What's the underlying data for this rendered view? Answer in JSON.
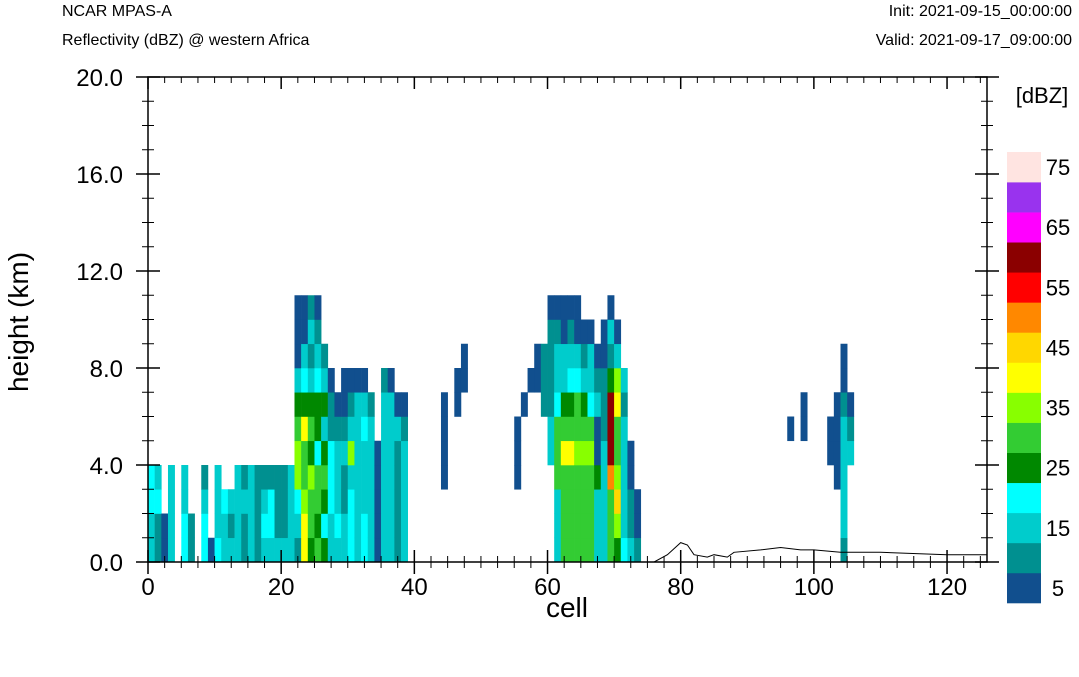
{
  "header": {
    "model": "NCAR MPAS-A",
    "field": "Reflectivity (dBZ) @ western Africa",
    "init": "Init: 2021-09-15_00:00:00",
    "valid": "Valid: 2021-09-17_09:00:00"
  },
  "colorbar": {
    "title": "[dBZ]",
    "label_values": [
      "5",
      "15",
      "25",
      "35",
      "45",
      "55",
      "65",
      "75"
    ],
    "levels": [
      5,
      10,
      15,
      20,
      25,
      30,
      35,
      40,
      45,
      50,
      55,
      60,
      65,
      70,
      75
    ],
    "colors": [
      "#114f8e",
      "#009090",
      "#00cccc",
      "#00ffff",
      "#008800",
      "#33cc33",
      "#88ff00",
      "#ffff00",
      "#ffd700",
      "#ff8800",
      "#ff0000",
      "#8b0000",
      "#ff00ff",
      "#9933ee",
      "#ffe4e1"
    ]
  },
  "chart_data": {
    "type": "heatmap",
    "xlabel": "cell",
    "ylabel": "height (km)",
    "xlim": [
      0,
      126
    ],
    "ylim": [
      0,
      20
    ],
    "x_ticks": [
      "0",
      "20",
      "40",
      "60",
      "80",
      "100",
      "120"
    ],
    "y_ticks": [
      "0.0",
      "4.0",
      "8.0",
      "12.0",
      "16.0",
      "20.0"
    ],
    "cell_width": 1,
    "cell_height_km": 1,
    "columns": [
      {
        "x": 0,
        "levels": [
          15,
          15,
          20,
          20
        ]
      },
      {
        "x": 1,
        "levels": [
          10,
          10,
          20,
          15
        ]
      },
      {
        "x": 2,
        "levels": [
          5,
          5
        ]
      },
      {
        "x": 3,
        "levels": [
          15,
          15,
          15,
          15
        ]
      },
      {
        "x": 5,
        "levels": [
          20,
          20,
          15,
          15
        ]
      },
      {
        "x": 6,
        "levels": [
          10,
          10
        ]
      },
      {
        "x": 8,
        "levels": [
          20,
          20,
          15,
          10
        ]
      },
      {
        "x": 9,
        "levels": [
          5
        ]
      },
      {
        "x": 10,
        "levels": [
          20,
          15,
          15,
          15
        ]
      },
      {
        "x": 11,
        "levels": [
          15,
          15,
          20
        ]
      },
      {
        "x": 12,
        "levels": [
          15,
          10,
          15
        ]
      },
      {
        "x": 13,
        "levels": [
          15,
          15,
          15,
          15
        ]
      },
      {
        "x": 14,
        "levels": [
          10,
          10,
          15,
          10
        ]
      },
      {
        "x": 15,
        "levels": [
          15,
          15,
          15,
          15
        ]
      },
      {
        "x": 16,
        "levels": [
          10,
          10,
          10,
          10
        ]
      },
      {
        "x": 17,
        "levels": [
          15,
          20,
          15,
          10
        ]
      },
      {
        "x": 18,
        "levels": [
          15,
          20,
          20,
          10
        ]
      },
      {
        "x": 19,
        "levels": [
          15,
          10,
          10,
          10
        ]
      },
      {
        "x": 20,
        "levels": [
          15,
          10,
          10,
          10
        ]
      },
      {
        "x": 21,
        "levels": [
          15,
          15,
          15,
          15
        ]
      },
      {
        "x": 22,
        "levels": [
          10,
          15,
          20,
          35,
          35,
          30,
          25,
          15,
          5,
          5,
          5
        ]
      },
      {
        "x": 23,
        "levels": [
          40,
          40,
          35,
          30,
          30,
          40,
          25,
          20,
          15,
          5,
          5
        ]
      },
      {
        "x": 24,
        "levels": [
          25,
          30,
          30,
          35,
          25,
          30,
          25,
          15,
          10,
          15,
          10
        ]
      },
      {
        "x": 25,
        "levels": [
          30,
          25,
          30,
          30,
          20,
          25,
          25,
          20,
          15,
          10,
          5
        ]
      },
      {
        "x": 26,
        "levels": [
          25,
          20,
          25,
          30,
          25,
          15,
          25,
          15,
          10
        ]
      },
      {
        "x": 27,
        "levels": [
          15,
          15,
          20,
          20,
          20,
          10,
          10,
          5
        ]
      },
      {
        "x": 28,
        "levels": [
          15,
          20,
          15,
          15,
          15,
          10,
          5
        ]
      },
      {
        "x": 29,
        "levels": [
          15,
          15,
          10,
          10,
          15,
          10,
          5,
          5
        ]
      },
      {
        "x": 30,
        "levels": [
          20,
          20,
          20,
          15,
          35,
          15,
          10,
          5
        ]
      },
      {
        "x": 31,
        "levels": [
          15,
          15,
          15,
          15,
          15,
          15,
          15,
          5
        ]
      },
      {
        "x": 32,
        "levels": [
          20,
          20,
          15,
          15,
          15,
          20,
          15,
          5
        ]
      },
      {
        "x": 33,
        "levels": [
          15,
          15,
          15,
          15,
          15,
          15,
          10
        ]
      },
      {
        "x": 34,
        "levels": [
          5,
          5,
          5,
          5,
          5
        ]
      },
      {
        "x": 35,
        "levels": [
          15,
          15,
          15,
          15,
          15,
          15,
          15,
          10
        ]
      },
      {
        "x": 36,
        "levels": [
          15,
          15,
          15,
          15,
          15,
          15,
          15,
          5
        ]
      },
      {
        "x": 37,
        "levels": [
          10,
          10,
          10,
          10,
          10,
          15,
          5
        ]
      },
      {
        "x": 38,
        "levels": [
          15,
          15,
          15,
          15,
          15,
          10,
          5
        ]
      },
      {
        "x": 44,
        "levels": [
          0,
          0,
          0,
          5,
          5,
          5,
          5
        ]
      },
      {
        "x": 46,
        "levels": [
          0,
          0,
          0,
          0,
          0,
          0,
          5,
          5
        ]
      },
      {
        "x": 47,
        "levels": [
          0,
          0,
          0,
          0,
          0,
          0,
          0,
          5,
          5
        ]
      },
      {
        "x": 55,
        "levels": [
          0,
          0,
          0,
          5,
          5,
          5
        ]
      },
      {
        "x": 56,
        "levels": [
          0,
          0,
          0,
          0,
          0,
          0,
          5
        ]
      },
      {
        "x": 57,
        "levels": [
          0,
          0,
          0,
          0,
          0,
          0,
          0,
          5
        ]
      },
      {
        "x": 58,
        "levels": [
          0,
          0,
          0,
          0,
          0,
          0,
          0,
          5,
          5
        ]
      },
      {
        "x": 59,
        "levels": [
          0,
          0,
          0,
          0,
          0,
          0,
          10,
          10,
          10
        ]
      },
      {
        "x": 60,
        "levels": [
          0,
          0,
          0,
          0,
          15,
          15,
          10,
          10,
          10,
          10,
          5
        ]
      },
      {
        "x": 61,
        "levels": [
          15,
          15,
          15,
          30,
          30,
          30,
          20,
          15,
          15,
          10,
          5
        ]
      },
      {
        "x": 62,
        "levels": [
          30,
          30,
          30,
          30,
          40,
          30,
          25,
          15,
          15,
          5,
          5
        ]
      },
      {
        "x": 63,
        "levels": [
          30,
          30,
          30,
          30,
          40,
          30,
          25,
          20,
          15,
          10,
          5
        ]
      },
      {
        "x": 64,
        "levels": [
          30,
          30,
          30,
          30,
          35,
          30,
          30,
          20,
          15,
          5,
          5
        ]
      },
      {
        "x": 65,
        "levels": [
          30,
          30,
          30,
          30,
          35,
          30,
          25,
          15,
          10,
          5
        ]
      },
      {
        "x": 66,
        "levels": [
          30,
          30,
          30,
          30,
          35,
          30,
          20,
          15,
          15,
          5
        ]
      },
      {
        "x": 67,
        "levels": [
          15,
          15,
          15,
          25,
          5,
          5,
          15,
          10,
          5
        ]
      },
      {
        "x": 68,
        "levels": [
          15,
          15,
          15,
          15,
          15,
          10,
          10,
          10,
          5,
          5
        ]
      },
      {
        "x": 69,
        "levels": [
          30,
          30,
          30,
          50,
          60,
          60,
          60,
          25,
          10,
          15,
          5
        ]
      },
      {
        "x": 70,
        "levels": [
          25,
          35,
          45,
          35,
          30,
          30,
          40,
          35,
          15,
          5
        ]
      },
      {
        "x": 71,
        "levels": [
          20,
          15,
          15,
          15,
          15,
          15,
          10,
          15
        ]
      },
      {
        "x": 72,
        "levels": [
          15,
          10,
          10,
          5,
          5
        ]
      },
      {
        "x": 73,
        "levels": [
          10,
          5,
          5
        ]
      },
      {
        "x": 96,
        "levels": [
          0,
          0,
          0,
          0,
          0,
          5
        ]
      },
      {
        "x": 98,
        "levels": [
          0,
          0,
          0,
          0,
          0,
          5,
          5
        ]
      },
      {
        "x": 102,
        "levels": [
          0,
          0,
          0,
          0,
          5,
          5
        ]
      },
      {
        "x": 103,
        "levels": [
          0,
          0,
          0,
          5,
          5,
          5,
          5
        ]
      },
      {
        "x": 104,
        "levels": [
          10,
          15,
          15,
          15,
          15,
          15,
          10,
          5,
          5
        ]
      },
      {
        "x": 105,
        "levels": [
          0,
          0,
          0,
          0,
          15,
          10,
          5
        ]
      }
    ],
    "terrain_line": [
      [
        0,
        0
      ],
      [
        76,
        0
      ],
      [
        78,
        0.3
      ],
      [
        80,
        0.8
      ],
      [
        81,
        0.7
      ],
      [
        82,
        0.3
      ],
      [
        84,
        0.2
      ],
      [
        85,
        0.3
      ],
      [
        87,
        0.2
      ],
      [
        88,
        0.4
      ],
      [
        92,
        0.5
      ],
      [
        95,
        0.6
      ],
      [
        98,
        0.5
      ],
      [
        100,
        0.5
      ],
      [
        104,
        0.4
      ],
      [
        110,
        0.4
      ],
      [
        120,
        0.3
      ],
      [
        126,
        0.3
      ]
    ]
  }
}
